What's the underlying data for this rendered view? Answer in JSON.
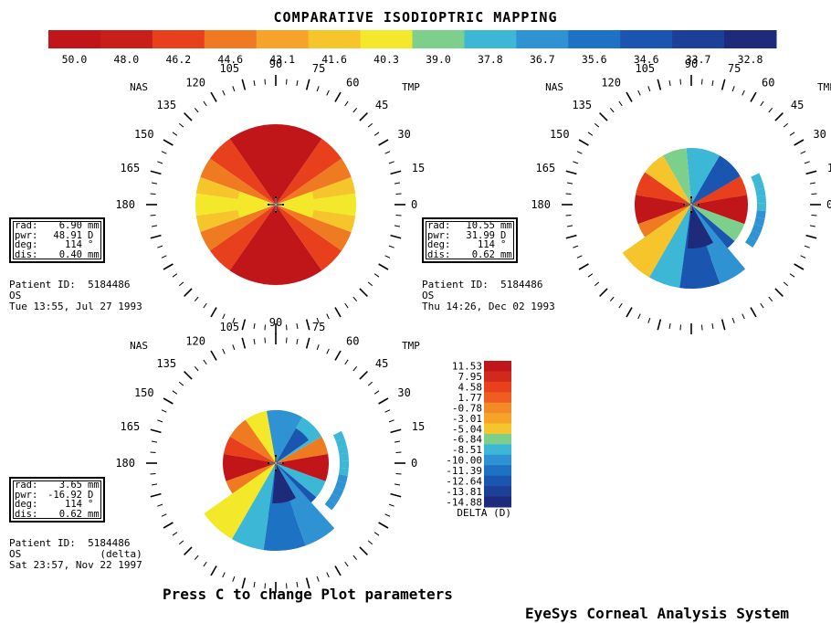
{
  "title": "COMPARATIVE ISODIOPTRIC MAPPING",
  "color_scale": {
    "values": [
      "50.0",
      "48.0",
      "46.2",
      "44.6",
      "43.1",
      "41.6",
      "40.3",
      "39.0",
      "37.8",
      "36.7",
      "35.6",
      "34.6",
      "33.7",
      "32.8"
    ],
    "colors": [
      "#c0161a",
      "#c82018",
      "#e8401c",
      "#f07a22",
      "#f5a329",
      "#f6c52b",
      "#f3e82a",
      "#7dcf8c",
      "#3cb7d6",
      "#2f92d3",
      "#1d72c4",
      "#1a56b0",
      "#1c3f98",
      "#1e2b7a"
    ]
  },
  "plot_labels": {
    "nasal": "NAS",
    "temporal": "TMP",
    "angles_upper": [
      "90",
      "75",
      "60",
      "45",
      "30",
      "15",
      "0",
      "105",
      "120",
      "135",
      "150",
      "165",
      "180"
    ]
  },
  "maps": [
    {
      "name": "map-1",
      "info": {
        "rad": "6.90",
        "rad_unit": "mm",
        "pwr": "48.91",
        "pwr_unit": "D",
        "deg": "114",
        "deg_unit": "°",
        "dis": "0.40",
        "dis_unit": "mm"
      },
      "patient_label": "Patient ID:",
      "patient_id": "5184486",
      "eye": "OS",
      "extra": "",
      "date": "Tue 13:55, Jul 27 1993"
    },
    {
      "name": "map-2",
      "info": {
        "rad": "10.55",
        "rad_unit": "mm",
        "pwr": "31.99",
        "pwr_unit": "D",
        "deg": "114",
        "deg_unit": "°",
        "dis": "0.62",
        "dis_unit": "mm"
      },
      "patient_label": "Patient ID:",
      "patient_id": "5184486",
      "eye": "OS",
      "extra": "",
      "date": "Thu 14:26, Dec 02 1993"
    },
    {
      "name": "map-3",
      "info": {
        "rad": "3.65",
        "rad_unit": "mm",
        "pwr": "-16.92",
        "pwr_unit": "D",
        "deg": "114",
        "deg_unit": "°",
        "dis": "0.62",
        "dis_unit": "mm"
      },
      "patient_label": "Patient ID:",
      "patient_id": "5184486",
      "eye": "OS",
      "extra": "(delta)",
      "date": "Sat 23:57, Nov 22 1997"
    }
  ],
  "delta_scale": {
    "values": [
      "11.53",
      "7.95",
      "4.58",
      "1.77",
      "-0.78",
      "-3.01",
      "-5.04",
      "-6.84",
      "-8.51",
      "-10.00",
      "-11.39",
      "-12.64",
      "-13.81",
      "-14.88"
    ],
    "colors": [
      "#c0161a",
      "#d02a1c",
      "#e8401c",
      "#ef5e20",
      "#f28a25",
      "#f5a329",
      "#f6c52b",
      "#7dcf8c",
      "#3cb7d6",
      "#2f92d3",
      "#1d72c4",
      "#1a56b0",
      "#1c3f98",
      "#1e2b7a"
    ],
    "label": "DELTA (D)"
  },
  "footer": {
    "hint": "Press C to change Plot parameters",
    "brand": "EyeSys Corneal Analysis System"
  }
}
